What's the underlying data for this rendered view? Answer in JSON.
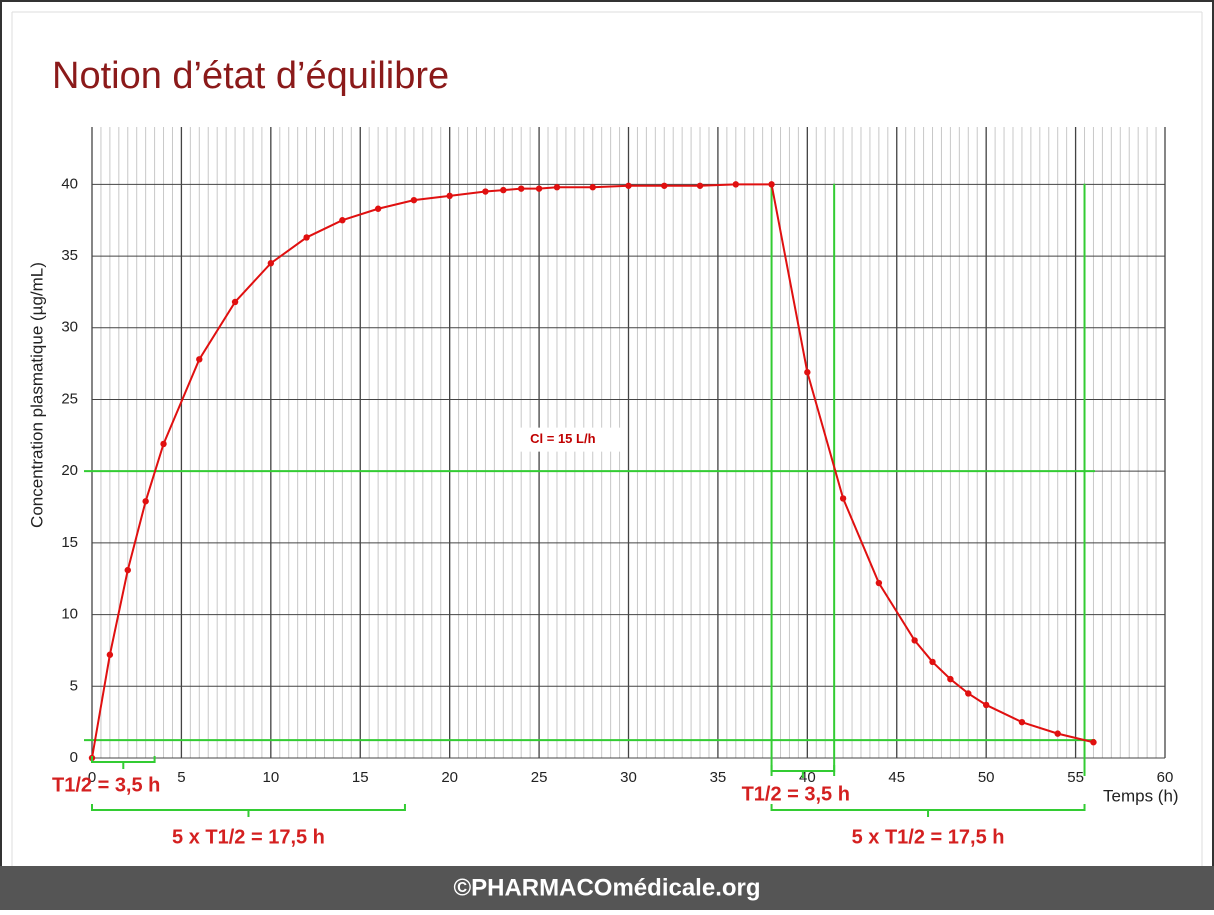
{
  "chart_data": {
    "type": "line",
    "title": "Notion d’état d’équilibre",
    "x_label": "Temps (h)",
    "y_label": "Concentration plasmatique (µg/mL)",
    "footer": "©PHARMACOmédicale.org",
    "xlim": [
      0,
      60
    ],
    "ylim": [
      0,
      44
    ],
    "xticks": [
      0,
      5,
      10,
      15,
      20,
      25,
      30,
      35,
      40,
      45,
      50,
      55,
      60
    ],
    "yticks": [
      0,
      5,
      10,
      15,
      20,
      25,
      30,
      35,
      40
    ],
    "minor_xstep": 0.5,
    "grid": true,
    "series": [
      {
        "name": "Concentration",
        "color": "#e01010",
        "x": [
          0,
          1,
          2,
          3,
          4,
          6,
          8,
          10,
          12,
          14,
          16,
          18,
          20,
          22,
          23,
          24,
          25,
          26,
          28,
          30,
          32,
          34,
          36,
          38,
          40,
          42,
          44,
          46,
          47,
          48,
          49,
          50,
          52,
          54,
          56
        ],
        "values": [
          0,
          7.2,
          13.1,
          17.9,
          21.9,
          27.8,
          31.8,
          34.5,
          36.3,
          37.5,
          38.3,
          38.9,
          39.2,
          39.5,
          39.6,
          39.7,
          39.7,
          39.8,
          39.8,
          39.9,
          39.9,
          39.9,
          40.0,
          40.0,
          26.9,
          18.1,
          12.2,
          8.2,
          6.7,
          5.5,
          4.5,
          3.7,
          2.5,
          1.7,
          1.1
        ]
      }
    ],
    "reference_color": "#33cc33",
    "hlines": [
      20,
      1.25
    ],
    "vlines": [
      38,
      41.5,
      55.5
    ],
    "annotations": [
      {
        "text": "Cl = 15 L/h",
        "x": 24.5,
        "y": 22.2
      },
      {
        "text": "T1/2 = 3,5 h",
        "from": 0,
        "to": 3.5,
        "level": 1
      },
      {
        "text": "5 x T1/2 = 17,5 h",
        "from": 0,
        "to": 17.5,
        "level": 2
      },
      {
        "text": "T1/2 = 3,5 h",
        "from": 38,
        "to": 41.5,
        "level": 1
      },
      {
        "text": "5 x T1/2 = 17,5 h",
        "from": 38,
        "to": 55.5,
        "level": 2
      }
    ]
  }
}
